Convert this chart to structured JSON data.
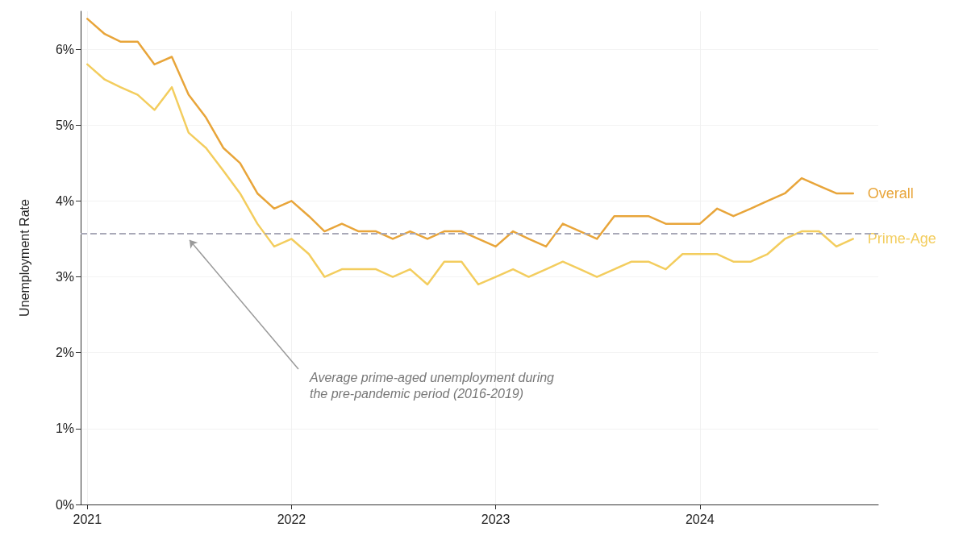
{
  "chart_data": {
    "type": "line",
    "ylabel": "Unemployment Rate",
    "x": [
      "2021-01",
      "2021-02",
      "2021-03",
      "2021-04",
      "2021-05",
      "2021-06",
      "2021-07",
      "2021-08",
      "2021-09",
      "2021-10",
      "2021-11",
      "2021-12",
      "2022-01",
      "2022-02",
      "2022-03",
      "2022-04",
      "2022-05",
      "2022-06",
      "2022-07",
      "2022-08",
      "2022-09",
      "2022-10",
      "2022-11",
      "2022-12",
      "2023-01",
      "2023-02",
      "2023-03",
      "2023-04",
      "2023-05",
      "2023-06",
      "2023-07",
      "2023-08",
      "2023-09",
      "2023-10",
      "2023-11",
      "2023-12",
      "2024-01",
      "2024-02",
      "2024-03",
      "2024-04",
      "2024-05",
      "2024-06",
      "2024-07",
      "2024-08",
      "2024-09",
      "2024-10"
    ],
    "series": [
      {
        "name": "Overall",
        "color": "#e8a53a",
        "values": [
          6.4,
          6.2,
          6.1,
          6.1,
          5.8,
          5.9,
          5.4,
          5.1,
          4.7,
          4.5,
          4.1,
          3.9,
          4.0,
          3.8,
          3.6,
          3.7,
          3.6,
          3.6,
          3.5,
          3.6,
          3.5,
          3.6,
          3.6,
          3.5,
          3.4,
          3.6,
          3.5,
          3.4,
          3.7,
          3.6,
          3.5,
          3.8,
          3.8,
          3.8,
          3.7,
          3.7,
          3.7,
          3.9,
          3.8,
          3.9,
          4.0,
          4.1,
          4.3,
          4.2,
          4.1,
          4.1
        ]
      },
      {
        "name": "Prime-Age",
        "color": "#f3cd5e",
        "values": [
          5.8,
          5.6,
          5.5,
          5.4,
          5.2,
          5.5,
          4.9,
          4.7,
          4.4,
          4.1,
          3.7,
          3.4,
          3.5,
          3.3,
          3.0,
          3.1,
          3.1,
          3.1,
          3.0,
          3.1,
          2.9,
          3.2,
          3.2,
          2.9,
          3.0,
          3.1,
          3.0,
          3.1,
          3.2,
          3.1,
          3.0,
          3.1,
          3.2,
          3.2,
          3.1,
          3.3,
          3.3,
          3.3,
          3.2,
          3.2,
          3.3,
          3.5,
          3.6,
          3.6,
          3.4,
          3.5
        ]
      }
    ],
    "xlim": [
      "2020-12-20",
      "2024-11-15"
    ],
    "xticks": [
      "2021",
      "2022",
      "2023",
      "2024"
    ],
    "ylim": [
      0,
      6.5
    ],
    "yticks": [
      {
        "value": 0,
        "label": "0%"
      },
      {
        "value": 1,
        "label": "1%"
      },
      {
        "value": 2,
        "label": "2%"
      },
      {
        "value": 3,
        "label": "3%"
      },
      {
        "value": 4,
        "label": "4%"
      },
      {
        "value": 5,
        "label": "5%"
      },
      {
        "value": 6,
        "label": "6%"
      }
    ],
    "ref_lines": [
      {
        "axis": "y",
        "value": 3.57,
        "color": "#a9a9b8",
        "line_style": "dashed"
      }
    ],
    "annotations": [
      "Average prime-aged unemployment during\nthe pre-pandemic period (2016-2019)"
    ],
    "grid": true,
    "legend": false,
    "marker": "none",
    "line_style": "solid"
  }
}
